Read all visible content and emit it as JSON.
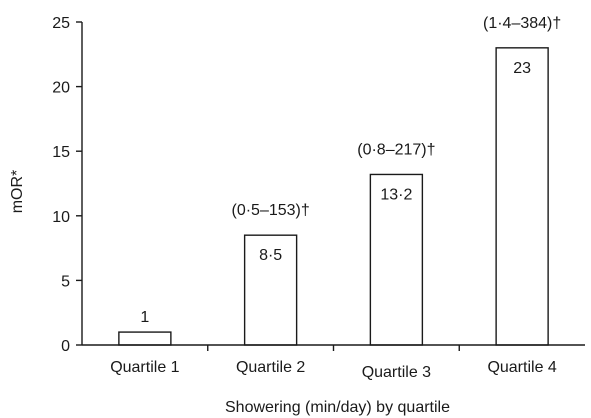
{
  "chart_data": {
    "type": "bar",
    "categories": [
      "Quartile 1",
      "Quartile 2",
      "Quartile 3",
      "Quartile 4"
    ],
    "values": [
      1,
      8.5,
      13.2,
      23
    ],
    "value_labels": [
      "1",
      "8·5",
      "13·2",
      "23"
    ],
    "ci_labels": [
      "",
      "(0·5–153)†",
      "(0·8–217)†",
      "(1·4–384)†"
    ],
    "title": "",
    "xlabel": "Showering (min/day) by quartile",
    "ylabel": "mOR*",
    "ylim": [
      0,
      25
    ],
    "yticks": [
      0,
      5,
      10,
      15,
      20,
      25
    ],
    "grid": false,
    "bar_fill": "#ffffff",
    "bar_stroke": "#1a1a1a"
  }
}
